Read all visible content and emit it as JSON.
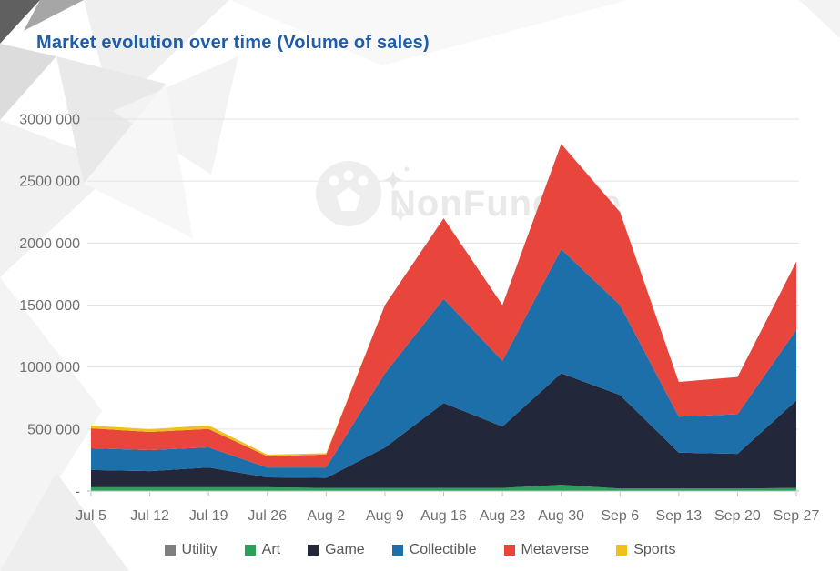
{
  "page": {
    "title": "Market evolution over time (Volume of sales)",
    "title_color": "#1d5da9",
    "watermark_text": "NonFungible"
  },
  "chart_data": {
    "type": "area",
    "stacked": true,
    "title": "Market evolution over time (Volume of sales)",
    "categories": [
      "Jul 5",
      "Jul 12",
      "Jul 19",
      "Jul 26",
      "Aug 2",
      "Aug 9",
      "Aug 16",
      "Aug 23",
      "Aug 30",
      "Sep 6",
      "Sep 13",
      "Sep 20",
      "Sep 27"
    ],
    "series": [
      {
        "name": "Utility",
        "color": "#7f7f7f",
        "values": [
          0,
          0,
          0,
          0,
          0,
          0,
          0,
          0,
          0,
          0,
          0,
          0,
          0
        ]
      },
      {
        "name": "Art",
        "color": "#2ba05c",
        "values": [
          30000,
          30000,
          30000,
          30000,
          25000,
          25000,
          25000,
          25000,
          50000,
          20000,
          20000,
          20000,
          25000
        ]
      },
      {
        "name": "Game",
        "color": "#23273a",
        "values": [
          140000,
          130000,
          160000,
          80000,
          80000,
          325000,
          685000,
          495000,
          900000,
          755000,
          290000,
          280000,
          705000
        ]
      },
      {
        "name": "Collectible",
        "color": "#1c6fa8",
        "values": [
          175000,
          170000,
          162000,
          80000,
          85000,
          600000,
          840000,
          530000,
          1000000,
          725000,
          290000,
          320000,
          570000
        ]
      },
      {
        "name": "Metaverse",
        "color": "#e8463c",
        "values": [
          160000,
          147000,
          149000,
          90000,
          105000,
          550000,
          650000,
          450000,
          850000,
          750000,
          280000,
          300000,
          550000
        ]
      },
      {
        "name": "Sports",
        "color": "#efc11e",
        "values": [
          23000,
          22000,
          29000,
          13000,
          10000,
          0,
          0,
          0,
          0,
          0,
          0,
          0,
          0
        ]
      }
    ],
    "ylim": [
      0,
      3000000
    ],
    "y_ticks": [
      {
        "label": "3000 000",
        "value": 3000000
      },
      {
        "label": "2500 000",
        "value": 2500000
      },
      {
        "label": "2000 000",
        "value": 2000000
      },
      {
        "label": "1500 000",
        "value": 1500000
      },
      {
        "label": "1000 000",
        "value": 1000000
      },
      {
        "label": "500 000",
        "value": 500000
      },
      {
        "label": "-",
        "value": 0
      }
    ],
    "grid": "horizontal",
    "legend_position": "bottom",
    "xlabel": "",
    "ylabel": ""
  }
}
